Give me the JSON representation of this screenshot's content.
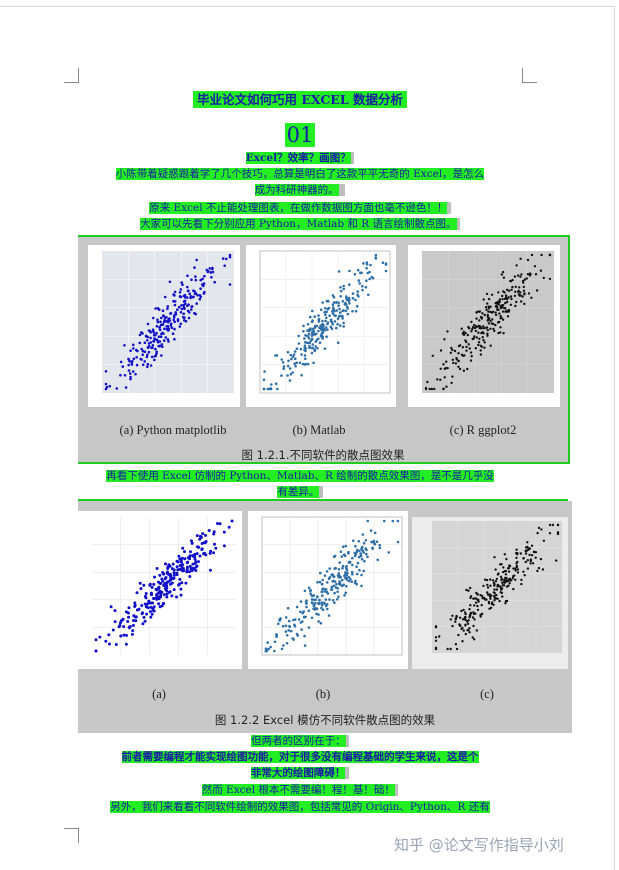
{
  "title": "毕业论文如何巧用 EXCEL 数据分析",
  "section_number": "01",
  "subtitle": "Excel？效率？画图？",
  "para1_line1": "小陈带着疑惑跟着学了几个技巧，总算是明白了这款平平无奇的 Excel，是怎么",
  "para1_line2": "成为科研神器的。",
  "para2": "原来 Excel 不止能处理图表，在做作数据图方面也毫不逊色！！",
  "para3": "大家可以先看下分别应用 Python，Matlab 和 R 语言绘制散点图。",
  "figure1": {
    "panel_labels": [
      "(a) Python matplotlib",
      "(b) Matlab",
      "(c) R ggplot2"
    ],
    "caption": "图 1.2.1.不同软件的散点图效果"
  },
  "para4_line1": "再看下使用 Excel 仿制的 Python、Matlab、R 绘制的散点效果图，是不是几乎没",
  "para4_line2": "有差异。",
  "figure2": {
    "panel_labels": [
      "(a)",
      "(b)",
      "(c)"
    ],
    "caption": "图 1.2.2 Excel 模仿不同软件散点图的效果"
  },
  "para5": "但两者的区别在于：",
  "para6_line1": "前者需要编程才能实现绘图功能，对于很多没有编程基础的学生来说，这是个",
  "para6_line2": "非常大的绘图障碍！",
  "para7": "然而 Excel 根本不需要编！程！基！础！",
  "para8": "另外，我们来看看不同软件绘制的效果图，包括常见的 Origin、Python、R 还有",
  "watermark": "知乎 @论文写作指导小刘",
  "colors": {
    "highlight": "#22ee22",
    "text": "#1a1aa8",
    "python": "#1010c8",
    "matlab": "#2f6fa8",
    "r": "#111111"
  }
}
